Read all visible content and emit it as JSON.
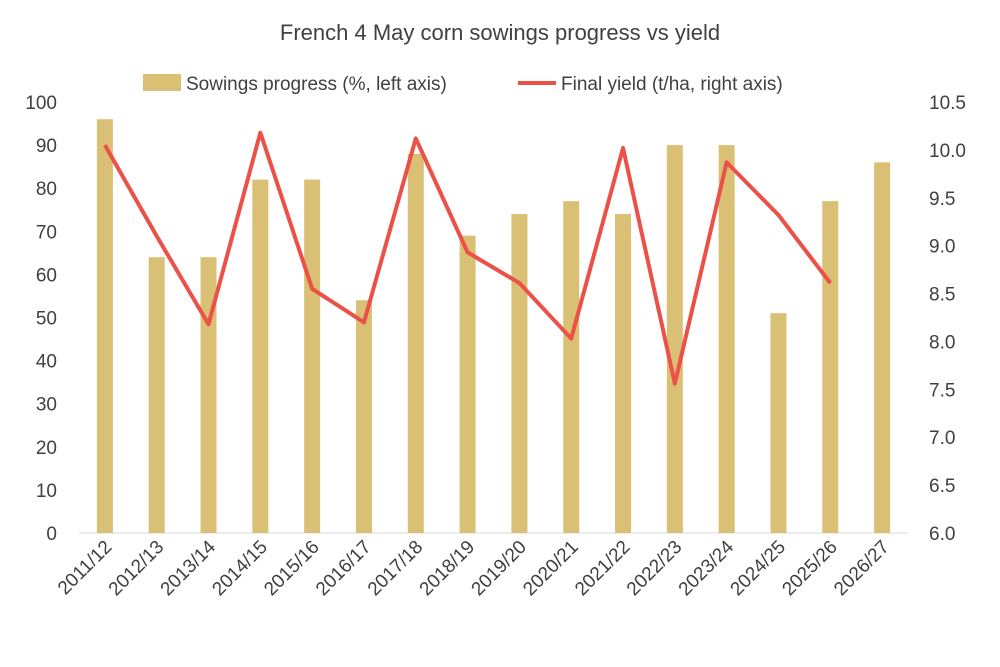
{
  "chart_data": {
    "type": "bar",
    "title": "French 4 May corn sowings progress vs yield",
    "categories": [
      "2011/12",
      "2012/13",
      "2013/14",
      "2014/15",
      "2015/16",
      "2016/17",
      "2017/18",
      "2018/19",
      "2019/20",
      "2020/21",
      "2021/22",
      "2022/23",
      "2023/24",
      "2024/25",
      "2025/26",
      "2026/27"
    ],
    "series": [
      {
        "name": "Sowings progress (%, left axis)",
        "type": "bar",
        "axis": "left",
        "color": "#D9C075",
        "values": [
          96,
          64,
          64,
          82,
          82,
          54,
          88,
          69,
          74,
          77,
          74,
          90,
          90,
          51,
          77,
          86
        ]
      },
      {
        "name": "Final yield (t/ha, right axis)",
        "type": "line",
        "axis": "right",
        "color": "#EC5148",
        "values": [
          10.05,
          9.1,
          8.18,
          10.18,
          8.55,
          8.2,
          10.12,
          8.93,
          8.61,
          8.03,
          10.02,
          7.56,
          9.87,
          9.32,
          8.61,
          null
        ]
      }
    ],
    "y_left": {
      "min": 0,
      "max": 100,
      "ticks": [
        "0",
        "10",
        "20",
        "30",
        "40",
        "50",
        "60",
        "70",
        "80",
        "90",
        "100"
      ]
    },
    "y_right": {
      "min": 6.0,
      "max": 10.5,
      "ticks": [
        "6.0",
        "6.5",
        "7.0",
        "7.5",
        "8.0",
        "8.5",
        "9.0",
        "9.5",
        "10.0",
        "10.5"
      ]
    },
    "grid": false,
    "legend_position": "top"
  }
}
